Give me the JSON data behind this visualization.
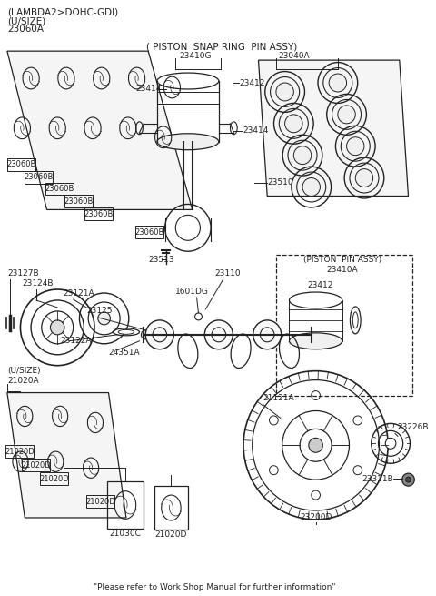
{
  "title_line1": "(LAMBDA2>DOHC-GDI)",
  "title_line2": "(U/SIZE)",
  "title_line3": "23060A",
  "snap_ring_label": "( PISTON  SNAP RING  PIN ASSY)",
  "piston_pin_assy_label": "(PISTON  PIN ASSY)",
  "footer": "\"Please refer to Work Shop Manual for further information\"",
  "bg_color": "#ffffff",
  "lc": "#222222",
  "fs": 6.5,
  "fs_title": 7.5
}
